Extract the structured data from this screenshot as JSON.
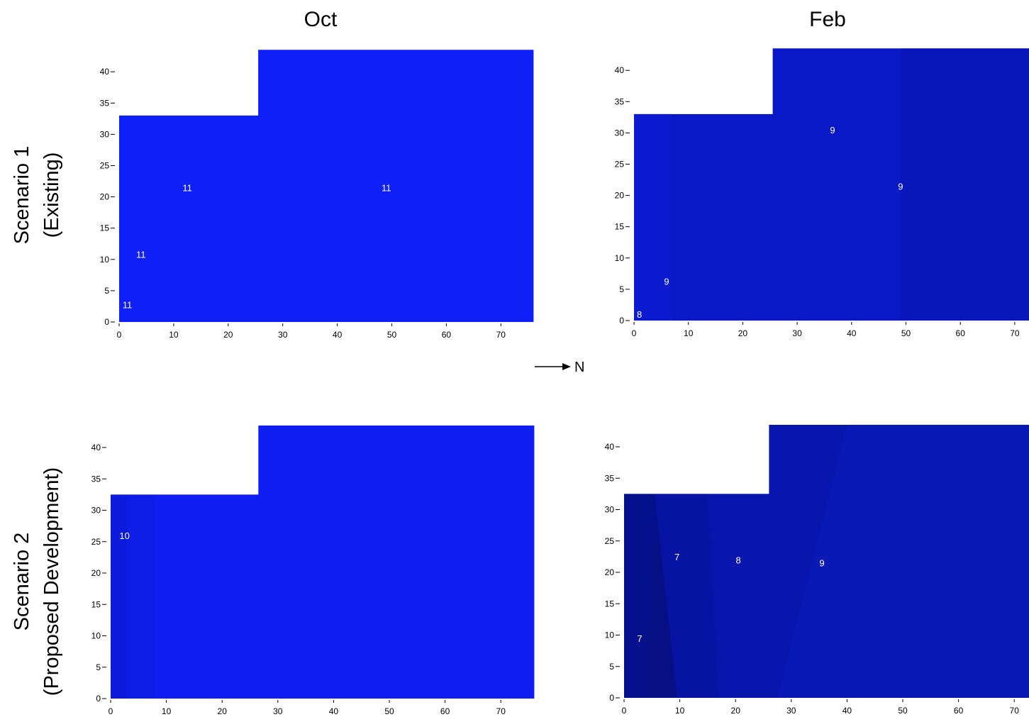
{
  "columns": [
    "Oct",
    "Feb"
  ],
  "rows": [
    [
      "Scenario 1",
      "(Existing)"
    ],
    [
      "Scenario 2",
      "(Proposed Development)"
    ]
  ],
  "north_label": "N",
  "colors": {
    "oct_s1": "#0f1ff7",
    "feb_s1": "#0a19c8",
    "oct_s2": "#0f1ff3",
    "feb_s2": "#0919b6",
    "feb_s2_dark": "#050f90",
    "label": "#ffffff"
  },
  "chart_data": [
    {
      "type": "heatmap",
      "title": "Oct",
      "row": "Scenario 1 (Existing)",
      "xticks": [
        0,
        10,
        20,
        30,
        40,
        50,
        60,
        70
      ],
      "yticks": [
        0,
        5,
        10,
        15,
        20,
        25,
        30,
        35,
        40
      ],
      "xlim": [
        0,
        76
      ],
      "ylim": [
        0,
        43.5
      ],
      "domain": [
        [
          0,
          0
        ],
        [
          0,
          33
        ],
        [
          25.5,
          33
        ],
        [
          25.5,
          43.5
        ],
        [
          76,
          43.5
        ],
        [
          76,
          0
        ]
      ],
      "contour_labels": [
        {
          "x": 12.5,
          "y": 21.5,
          "text": "11"
        },
        {
          "x": 49,
          "y": 21.5,
          "text": "11"
        },
        {
          "x": 4,
          "y": 10.8,
          "text": "11"
        },
        {
          "x": 1.5,
          "y": 2.8,
          "text": "11"
        }
      ]
    },
    {
      "type": "heatmap",
      "title": "Feb",
      "row": "Scenario 1 (Existing)",
      "xticks": [
        0,
        10,
        20,
        30,
        40,
        50,
        60,
        70
      ],
      "yticks": [
        0,
        5,
        10,
        15,
        20,
        25,
        30,
        35,
        40
      ],
      "xlim": [
        0,
        76
      ],
      "ylim": [
        0,
        43.5
      ],
      "domain": [
        [
          0,
          0
        ],
        [
          0,
          33
        ],
        [
          25.5,
          33
        ],
        [
          25.5,
          43.5
        ],
        [
          76,
          43.5
        ],
        [
          76,
          0
        ]
      ],
      "contour_labels": [
        {
          "x": 36.5,
          "y": 30.5,
          "text": "9"
        },
        {
          "x": 49,
          "y": 21.5,
          "text": "9"
        },
        {
          "x": 6,
          "y": 6.3,
          "text": "9"
        },
        {
          "x": 1,
          "y": 1,
          "text": "8"
        }
      ]
    },
    {
      "type": "heatmap",
      "title": "Oct",
      "row": "Scenario 2 (Proposed Development)",
      "xticks": [
        0,
        10,
        20,
        30,
        40,
        50,
        60,
        70
      ],
      "yticks": [
        0,
        5,
        10,
        15,
        20,
        25,
        30,
        35,
        40
      ],
      "xlim": [
        0,
        76
      ],
      "ylim": [
        0,
        43.5
      ],
      "domain": [
        [
          0,
          0
        ],
        [
          0,
          32.5
        ],
        [
          26.5,
          32.5
        ],
        [
          26.5,
          43.5
        ],
        [
          76,
          43.5
        ],
        [
          76,
          0
        ]
      ],
      "contour_labels": [
        {
          "x": 2.5,
          "y": 26,
          "text": "10"
        }
      ]
    },
    {
      "type": "heatmap",
      "title": "Feb",
      "row": "Scenario 2 (Proposed Development)",
      "xticks": [
        0,
        10,
        20,
        30,
        40,
        50,
        60,
        70
      ],
      "yticks": [
        0,
        5,
        10,
        15,
        20,
        25,
        30,
        35,
        40
      ],
      "xlim": [
        0,
        76
      ],
      "ylim": [
        0,
        43.5
      ],
      "domain": [
        [
          0,
          0
        ],
        [
          0,
          32.5
        ],
        [
          26,
          32.5
        ],
        [
          26,
          43.5
        ],
        [
          76,
          43.5
        ],
        [
          76,
          0
        ]
      ],
      "contour_labels": [
        {
          "x": 9.5,
          "y": 22.5,
          "text": "7"
        },
        {
          "x": 20.5,
          "y": 22,
          "text": "8"
        },
        {
          "x": 35.5,
          "y": 21.5,
          "text": "9"
        },
        {
          "x": 2.8,
          "y": 9.5,
          "text": "7"
        }
      ]
    }
  ]
}
